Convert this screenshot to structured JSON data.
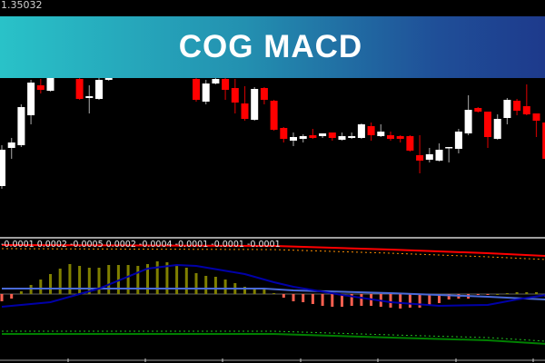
{
  "banner": {
    "title": "COG MACD",
    "gradient": [
      "#29c2c8",
      "#1e3a8c"
    ]
  },
  "price_label": "1.35032",
  "indicator_values_text": "-0.0001 0.0002 -0.0005 0.0002 -0.0004 -0.0001 -0.0001 -0.0001",
  "colors": {
    "bull": "#ffffff",
    "bear": "#ff0000",
    "hist_pos": "#808000",
    "hist_neg": "#ff6050",
    "macd": "#0000a8",
    "level": "#4a6ad8",
    "upper": "#ff0000",
    "lower": "#008000"
  },
  "chart_data": [
    {
      "type": "candlestick",
      "title": "",
      "note_hidden_bars": "bars under banner not visible",
      "candles": [
        [
          1.34832,
          1.34877,
          1.34829,
          1.34872
        ],
        [
          1.34874,
          1.34885,
          1.34862,
          1.3488
        ],
        [
          1.34877,
          1.34922,
          1.34875,
          1.34919
        ],
        [
          1.3491,
          1.34949,
          1.349,
          1.34946
        ],
        [
          1.34943,
          1.3495,
          1.34934,
          1.34938
        ],
        [
          1.34937,
          1.34957,
          1.34936,
          1.34952
        ],
        null,
        null,
        [
          1.3495,
          1.34957,
          1.34927,
          1.34928
        ],
        [
          1.34929,
          1.34943,
          1.34912,
          1.34931
        ],
        [
          1.34928,
          1.34952,
          1.34927,
          1.34949
        ],
        [
          1.34949,
          1.34955,
          1.34948,
          1.34953
        ],
        null,
        null,
        null,
        null,
        null,
        null,
        null,
        null,
        [
          1.3495,
          1.34957,
          1.34925,
          1.34927
        ],
        [
          1.34925,
          1.34949,
          1.34922,
          1.34945
        ],
        [
          1.34945,
          1.34951,
          1.34944,
          1.3495
        ],
        [
          1.3495,
          1.34952,
          1.34927,
          1.34938
        ],
        [
          1.3494,
          1.3495,
          1.34912,
          1.34924
        ],
        [
          1.34923,
          1.34942,
          1.34904,
          1.34906
        ],
        [
          1.34905,
          1.34941,
          1.34904,
          1.34939
        ],
        [
          1.3494,
          1.34941,
          1.34922,
          1.34927
        ],
        [
          1.34926,
          1.34927,
          1.34893,
          1.34894
        ],
        [
          1.34896,
          1.34897,
          1.3488,
          1.34884
        ],
        [
          1.34882,
          1.34891,
          1.34876,
          1.34886
        ],
        [
          1.34884,
          1.34889,
          1.3488,
          1.34887
        ],
        [
          1.34888,
          1.34895,
          1.34884,
          1.34885
        ],
        [
          1.34887,
          1.3489,
          1.34885,
          1.3489
        ],
        [
          1.34891,
          1.34891,
          1.34882,
          1.34885
        ],
        [
          1.34883,
          1.34891,
          1.34882,
          1.34887
        ],
        [
          1.34885,
          1.34891,
          1.34884,
          1.34887
        ],
        [
          1.34885,
          1.34901,
          1.34884,
          1.349
        ],
        [
          1.34898,
          1.34902,
          1.34882,
          1.34888
        ],
        [
          1.34887,
          1.349,
          1.34886,
          1.34892
        ],
        [
          1.34888,
          1.34892,
          1.34882,
          1.34884
        ],
        [
          1.34887,
          1.34888,
          1.3488,
          1.34884
        ],
        [
          1.34887,
          1.34888,
          1.3487,
          1.34871
        ],
        [
          1.34866,
          1.34888,
          1.34846,
          1.3486
        ],
        [
          1.34861,
          1.34874,
          1.34858,
          1.34867
        ],
        [
          1.3486,
          1.34879,
          1.34859,
          1.34872
        ],
        [
          1.34874,
          1.34875,
          1.34858,
          1.34875
        ],
        [
          1.34873,
          1.34895,
          1.34868,
          1.34892
        ],
        [
          1.3489,
          1.34932,
          1.34888,
          1.34916
        ],
        [
          1.34918,
          1.34919,
          1.34913,
          1.34914
        ],
        [
          1.34914,
          1.34914,
          1.34874,
          1.34886
        ],
        [
          1.34884,
          1.34911,
          1.34883,
          1.34906
        ],
        [
          1.34907,
          1.34929,
          1.349,
          1.34927
        ],
        [
          1.34926,
          1.34928,
          1.3491,
          1.34915
        ],
        [
          1.3492,
          1.34944,
          1.3491,
          1.34911
        ],
        [
          1.34912,
          1.34912,
          1.34886,
          1.34904
        ],
        [
          1.34902,
          1.34904,
          1.34859,
          1.34862
        ]
      ],
      "candle_format": [
        "open",
        "high",
        "low",
        "close"
      ]
    },
    {
      "type": "bar+line",
      "title": "",
      "histogram": [
        -8e-05,
        -5e-05,
        3e-05,
        0.0001,
        0.00016,
        0.00022,
        0.00028,
        0.00033,
        0.00031,
        0.00029,
        0.00029,
        0.00032,
        0.00032,
        0.00032,
        0.00031,
        0.00033,
        0.00036,
        0.00035,
        0.00032,
        0.00029,
        0.00023,
        0.0002,
        0.00019,
        0.00016,
        0.00012,
        8e-05,
        7e-05,
        6e-05,
        1e-05,
        -4e-05,
        -8e-05,
        -9e-05,
        -0.00011,
        -0.00013,
        -0.00014,
        -0.00014,
        -0.00013,
        -0.00013,
        -0.00013,
        -0.00014,
        -0.00015,
        -0.00016,
        -0.00015,
        -0.00015,
        -0.00013,
        -0.0001,
        -6e-05,
        -5e-05,
        -5e-05,
        -1e-05,
        -1e-05,
        0.0,
        1e-05,
        2e-05,
        2e-05,
        2e-05,
        -3e-05
      ],
      "lines": {
        "macd": {
          "bars": [
            0,
            5,
            10,
            15,
            18,
            20,
            25,
            28,
            30,
            35,
            40,
            45,
            50,
            53,
            56
          ],
          "values": [
            -0.00014,
            -9e-05,
            6e-05,
            0.00028,
            0.00032,
            0.00031,
            0.00022,
            0.00013,
            8e-05,
            -1e-05,
            -9e-05,
            -0.00013,
            -0.00012,
            -6e-05,
            -1e-05
          ]
        },
        "level": {
          "bars": [
            0,
            27,
            30,
            40,
            50,
            56
          ],
          "values": [
            6e-05,
            6e-05,
            4e-05,
            1e-05,
            -3e-05,
            -6e-05
          ]
        },
        "upper": {
          "bars": [
            0,
            28,
            40,
            50,
            56
          ],
          "values": [
            0.00054,
            0.00053,
            0.00049,
            0.00045,
            0.00042
          ]
        },
        "lower": {
          "bars": [
            0,
            28,
            40,
            50,
            56
          ],
          "values": [
            -0.00044,
            -0.00044,
            -0.00048,
            -0.00051,
            -0.00055
          ]
        }
      },
      "zero_line": true
    }
  ]
}
